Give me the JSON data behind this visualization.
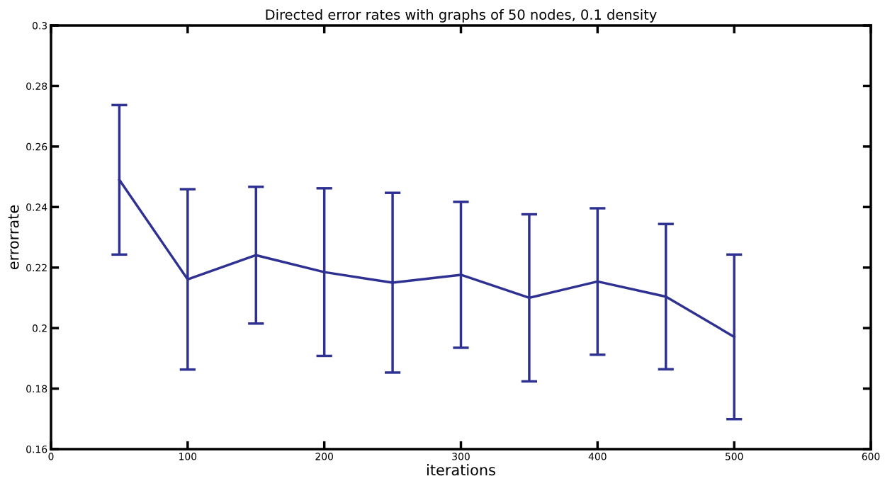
{
  "chart_data": {
    "type": "line",
    "title": "Directed error rates with graphs of 50 nodes, 0.1 density",
    "xlabel": "iterations",
    "ylabel": "errorrate",
    "x": [
      50,
      100,
      150,
      200,
      250,
      300,
      350,
      400,
      450,
      500
    ],
    "series": [
      {
        "color": "#2e3192",
        "values": [
          0.249,
          0.2161,
          0.2241,
          0.2185,
          0.215,
          0.2176,
          0.21,
          0.2154,
          0.2104,
          0.1971
        ],
        "errors": [
          0.0247,
          0.0298,
          0.0226,
          0.0277,
          0.0297,
          0.0241,
          0.0276,
          0.0242,
          0.024,
          0.0272
        ]
      }
    ],
    "xlim": [
      0,
      600
    ],
    "xticks": [
      0,
      100,
      200,
      300,
      400,
      500,
      600
    ],
    "ylim": [
      0.16,
      0.3
    ],
    "yticks": [
      0.16,
      0.18,
      0.2,
      0.22,
      0.24,
      0.26,
      0.28,
      0.3
    ],
    "grid": false,
    "legend": false,
    "marker": "none",
    "line_style": "solid"
  }
}
